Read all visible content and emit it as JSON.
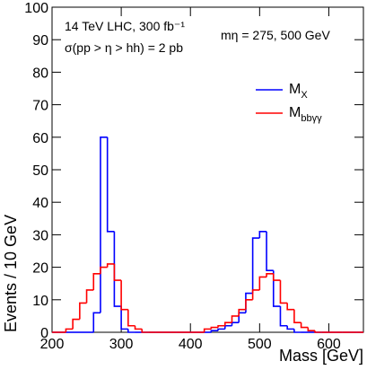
{
  "chart_data": {
    "type": "histogram",
    "annotations": [
      "14 TeV LHC,  300 fb⁻¹",
      "σ(pp > η > hh) = 2 pb",
      "mη = 275, 500 GeV"
    ],
    "xlabel": "Mass  [GeV]",
    "ylabel": "Events / 10 GeV",
    "bins": [
      200,
      210,
      220,
      230,
      240,
      250,
      260,
      270,
      280,
      290,
      300,
      310,
      320,
      330,
      340,
      350,
      360,
      370,
      380,
      390,
      400,
      410,
      420,
      430,
      440,
      450,
      460,
      470,
      480,
      490,
      500,
      510,
      520,
      530,
      540,
      550,
      560,
      570,
      580,
      590,
      600,
      610,
      620,
      630,
      640,
      650
    ],
    "series": [
      {
        "name": "MX",
        "color": "#0000ff",
        "values": [
          0,
          0,
          0,
          0,
          0,
          0,
          6,
          60,
          31,
          8,
          1,
          0,
          0,
          0,
          0,
          0,
          0,
          0,
          0,
          0,
          0,
          0,
          0,
          0.5,
          1,
          2,
          3,
          6,
          12,
          29,
          31,
          19,
          8,
          2,
          1,
          0,
          0,
          0,
          0,
          0,
          0,
          0,
          0,
          0,
          0
        ]
      },
      {
        "name": "Mbbγγ",
        "color": "#ff0000",
        "values": [
          0,
          0,
          1,
          4,
          9,
          13,
          18,
          20,
          21,
          16,
          7,
          2,
          1,
          0,
          0,
          0,
          0,
          0,
          0,
          0,
          0,
          0,
          1,
          1.5,
          2,
          3,
          5,
          7,
          10,
          13,
          17,
          18,
          16,
          9,
          7,
          3,
          1.5,
          0.5,
          0,
          0,
          0,
          0,
          0,
          0,
          0
        ]
      }
    ],
    "xlim": [
      200,
      650
    ],
    "ylim": [
      0,
      100
    ],
    "xticks": [
      200,
      300,
      400,
      500,
      600
    ],
    "yticks": [
      0,
      10,
      20,
      30,
      40,
      50,
      60,
      70,
      80,
      90,
      100
    ]
  }
}
